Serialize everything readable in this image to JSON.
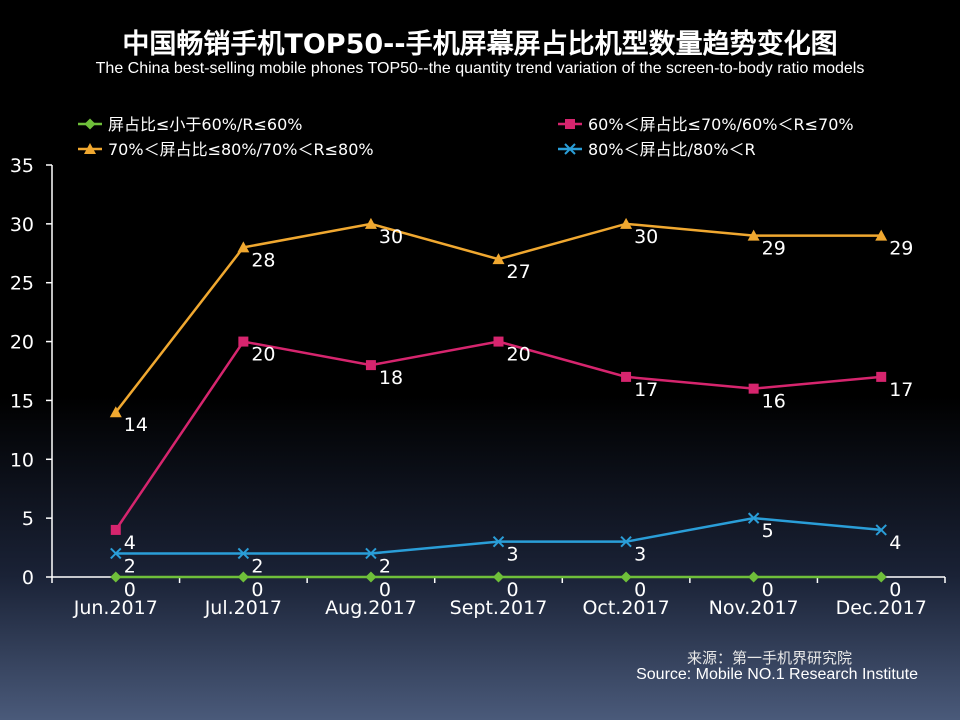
{
  "title_cn": "中国畅销手机TOP50--手机屏幕屏占比机型数量趋势变化图",
  "title_en": "The China best-selling mobile phones TOP50--the quantity trend variation of the screen-to-body ratio models",
  "source_cn": "来源：第一手机界研究院",
  "source_en": "Source: Mobile NO.1 Research Institute",
  "chart_data": {
    "type": "line",
    "title": "中国畅销手机TOP50--手机屏幕屏占比机型数量趋势变化图",
    "xlabel": "",
    "ylabel": "",
    "ylim": [
      0,
      35
    ],
    "yticks": [
      0,
      5,
      10,
      15,
      20,
      25,
      30,
      35
    ],
    "grid": false,
    "legend_position": "top",
    "categories": [
      "Jun.2017",
      "Jul.2017",
      "Aug.2017",
      "Sept.2017",
      "Oct.2017",
      "Nov.2017",
      "Dec.2017"
    ],
    "series": [
      {
        "name": "屏占比≤小于60%/R≤60%",
        "marker": "diamond",
        "color": "#6fbf3a",
        "values": [
          0,
          0,
          0,
          0,
          0,
          0,
          0
        ]
      },
      {
        "name": "60%＜屏占比≤70%/60%＜R≤70%",
        "marker": "square",
        "color": "#d6256e",
        "values": [
          4,
          20,
          18,
          20,
          17,
          16,
          17
        ]
      },
      {
        "name": "70%＜屏占比≤80%/70%＜R≤80%",
        "marker": "triangle",
        "color": "#f0a830",
        "values": [
          14,
          28,
          30,
          27,
          30,
          29,
          29
        ]
      },
      {
        "name": "80%＜屏占比/80%＜R",
        "marker": "x",
        "color": "#2a9ed8",
        "values": [
          2,
          2,
          2,
          3,
          3,
          5,
          4
        ]
      }
    ]
  }
}
